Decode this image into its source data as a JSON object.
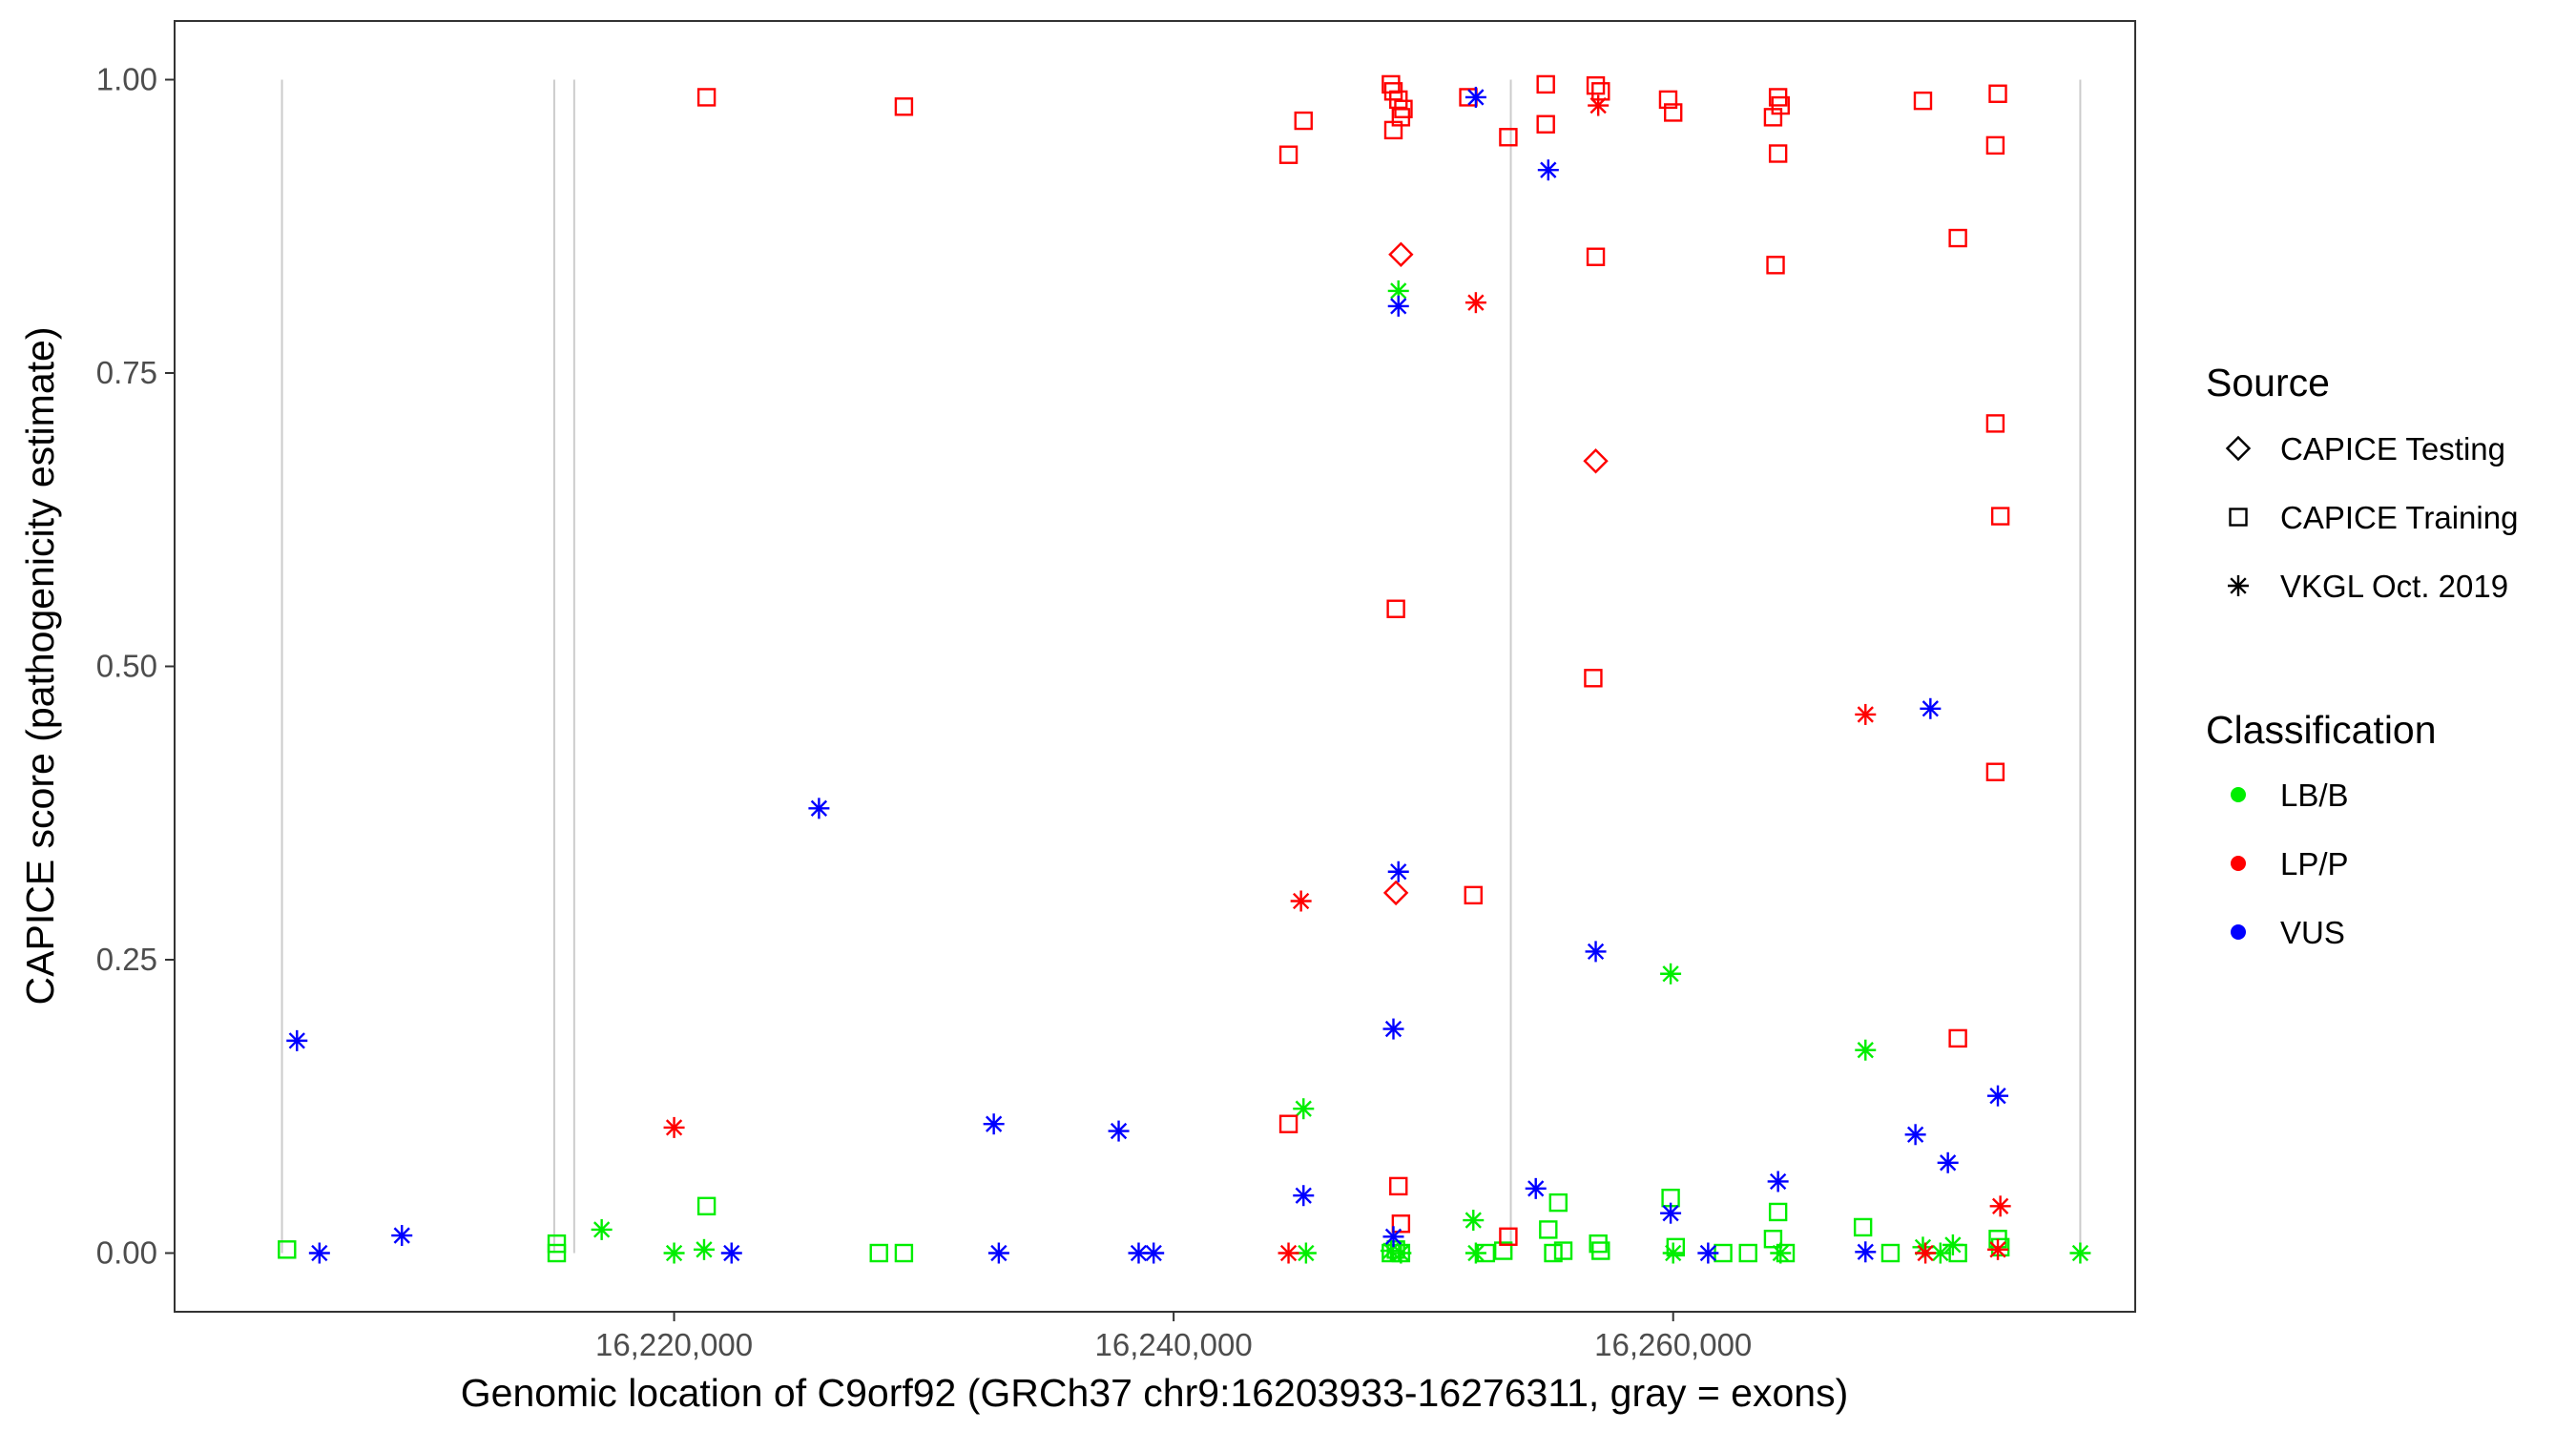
{
  "chart_data": {
    "type": "scatter",
    "xlabel": "Genomic location of C9orf92 (GRCh37 chr9:16203933-16276311, gray = exons)",
    "ylabel": "CAPICE score (pathogenicity estimate)",
    "xlim": [
      16200000,
      16278500
    ],
    "ylim": [
      -0.05,
      1.05
    ],
    "x_ticks": [
      {
        "value": 16220000,
        "label": "16,220,000"
      },
      {
        "value": 16240000,
        "label": "16,240,000"
      },
      {
        "value": 16260000,
        "label": "16,260,000"
      }
    ],
    "y_ticks": [
      {
        "value": 0.0,
        "label": "0.00"
      },
      {
        "value": 0.25,
        "label": "0.25"
      },
      {
        "value": 0.5,
        "label": "0.50"
      },
      {
        "value": 0.75,
        "label": "0.75"
      },
      {
        "value": 1.0,
        "label": "1.00"
      }
    ],
    "exon_positions": [
      16204300,
      16215200,
      16216000,
      16253500,
      16276300
    ],
    "exon_color": "#cccccc",
    "grid": false,
    "legend": {
      "placement": "right",
      "source_title": "Source",
      "source_entries": [
        {
          "label": "CAPICE Testing",
          "shape": "diamond"
        },
        {
          "label": "CAPICE Training",
          "shape": "square"
        },
        {
          "label": "VKGL Oct. 2019",
          "shape": "asterisk"
        }
      ],
      "class_title": "Classification",
      "class_entries": [
        {
          "label": "LB/B",
          "color": "#00ee00"
        },
        {
          "label": "LP/P",
          "color": "#ff0000"
        },
        {
          "label": "VUS",
          "color": "#0000ff"
        }
      ]
    },
    "points": [
      {
        "x": 16204500,
        "y": 0.003,
        "shape": "square",
        "cls": "LB/B"
      },
      {
        "x": 16215300,
        "y": 0.008,
        "shape": "square",
        "cls": "LB/B"
      },
      {
        "x": 16215300,
        "y": 0.0,
        "shape": "square",
        "cls": "LB/B"
      },
      {
        "x": 16221300,
        "y": 0.04,
        "shape": "square",
        "cls": "LB/B"
      },
      {
        "x": 16228200,
        "y": 0.0,
        "shape": "square",
        "cls": "LB/B"
      },
      {
        "x": 16229200,
        "y": 0.0,
        "shape": "square",
        "cls": "LB/B"
      },
      {
        "x": 16248700,
        "y": 0.0,
        "shape": "square",
        "cls": "LB/B"
      },
      {
        "x": 16248900,
        "y": 0.003,
        "shape": "square",
        "cls": "LB/B"
      },
      {
        "x": 16249100,
        "y": 0.0,
        "shape": "square",
        "cls": "LB/B"
      },
      {
        "x": 16252500,
        "y": 0.0,
        "shape": "square",
        "cls": "LB/B"
      },
      {
        "x": 16253200,
        "y": 0.002,
        "shape": "square",
        "cls": "LB/B"
      },
      {
        "x": 16255000,
        "y": 0.02,
        "shape": "square",
        "cls": "LB/B"
      },
      {
        "x": 16255400,
        "y": 0.043,
        "shape": "square",
        "cls": "LB/B"
      },
      {
        "x": 16255200,
        "y": 0.0,
        "shape": "square",
        "cls": "LB/B"
      },
      {
        "x": 16255600,
        "y": 0.002,
        "shape": "square",
        "cls": "LB/B"
      },
      {
        "x": 16257000,
        "y": 0.008,
        "shape": "square",
        "cls": "LB/B"
      },
      {
        "x": 16257100,
        "y": 0.002,
        "shape": "square",
        "cls": "LB/B"
      },
      {
        "x": 16259900,
        "y": 0.047,
        "shape": "square",
        "cls": "LB/B"
      },
      {
        "x": 16260100,
        "y": 0.005,
        "shape": "square",
        "cls": "LB/B"
      },
      {
        "x": 16262000,
        "y": 0.0,
        "shape": "square",
        "cls": "LB/B"
      },
      {
        "x": 16263000,
        "y": 0.0,
        "shape": "square",
        "cls": "LB/B"
      },
      {
        "x": 16264000,
        "y": 0.012,
        "shape": "square",
        "cls": "LB/B"
      },
      {
        "x": 16264200,
        "y": 0.035,
        "shape": "square",
        "cls": "LB/B"
      },
      {
        "x": 16264500,
        "y": 0.0,
        "shape": "square",
        "cls": "LB/B"
      },
      {
        "x": 16267600,
        "y": 0.022,
        "shape": "square",
        "cls": "LB/B"
      },
      {
        "x": 16268700,
        "y": 0.0,
        "shape": "square",
        "cls": "LB/B"
      },
      {
        "x": 16271400,
        "y": 0.0,
        "shape": "square",
        "cls": "LB/B"
      },
      {
        "x": 16273000,
        "y": 0.012,
        "shape": "square",
        "cls": "LB/B"
      },
      {
        "x": 16273100,
        "y": 0.005,
        "shape": "square",
        "cls": "LB/B"
      },
      {
        "x": 16217100,
        "y": 0.02,
        "shape": "asterisk",
        "cls": "LB/B"
      },
      {
        "x": 16220000,
        "y": 0.0,
        "shape": "asterisk",
        "cls": "LB/B"
      },
      {
        "x": 16221200,
        "y": 0.003,
        "shape": "asterisk",
        "cls": "LB/B"
      },
      {
        "x": 16245200,
        "y": 0.123,
        "shape": "asterisk",
        "cls": "LB/B"
      },
      {
        "x": 16245300,
        "y": 0.0,
        "shape": "asterisk",
        "cls": "LB/B"
      },
      {
        "x": 16249000,
        "y": 0.82,
        "shape": "asterisk",
        "cls": "LB/B"
      },
      {
        "x": 16249100,
        "y": 0.0,
        "shape": "asterisk",
        "cls": "LB/B"
      },
      {
        "x": 16248700,
        "y": 0.002,
        "shape": "asterisk",
        "cls": "LB/B"
      },
      {
        "x": 16252000,
        "y": 0.028,
        "shape": "asterisk",
        "cls": "LB/B"
      },
      {
        "x": 16252100,
        "y": 0.0,
        "shape": "asterisk",
        "cls": "LB/B"
      },
      {
        "x": 16259900,
        "y": 0.238,
        "shape": "asterisk",
        "cls": "LB/B"
      },
      {
        "x": 16260000,
        "y": 0.0,
        "shape": "asterisk",
        "cls": "LB/B"
      },
      {
        "x": 16264300,
        "y": 0.0,
        "shape": "asterisk",
        "cls": "LB/B"
      },
      {
        "x": 16267700,
        "y": 0.173,
        "shape": "asterisk",
        "cls": "LB/B"
      },
      {
        "x": 16270000,
        "y": 0.005,
        "shape": "asterisk",
        "cls": "LB/B"
      },
      {
        "x": 16270700,
        "y": 0.0,
        "shape": "asterisk",
        "cls": "LB/B"
      },
      {
        "x": 16271200,
        "y": 0.007,
        "shape": "asterisk",
        "cls": "LB/B"
      },
      {
        "x": 16276300,
        "y": 0.0,
        "shape": "asterisk",
        "cls": "LB/B"
      },
      {
        "x": 16221300,
        "y": 0.985,
        "shape": "square",
        "cls": "LP/P"
      },
      {
        "x": 16229200,
        "y": 0.977,
        "shape": "square",
        "cls": "LP/P"
      },
      {
        "x": 16244600,
        "y": 0.936,
        "shape": "square",
        "cls": "LP/P"
      },
      {
        "x": 16245200,
        "y": 0.965,
        "shape": "square",
        "cls": "LP/P"
      },
      {
        "x": 16244600,
        "y": 0.11,
        "shape": "square",
        "cls": "LP/P"
      },
      {
        "x": 16248700,
        "y": 0.996,
        "shape": "square",
        "cls": "LP/P"
      },
      {
        "x": 16248800,
        "y": 0.99,
        "shape": "square",
        "cls": "LP/P"
      },
      {
        "x": 16249000,
        "y": 0.983,
        "shape": "square",
        "cls": "LP/P"
      },
      {
        "x": 16249200,
        "y": 0.975,
        "shape": "square",
        "cls": "LP/P"
      },
      {
        "x": 16249100,
        "y": 0.968,
        "shape": "square",
        "cls": "LP/P"
      },
      {
        "x": 16248800,
        "y": 0.957,
        "shape": "square",
        "cls": "LP/P"
      },
      {
        "x": 16248900,
        "y": 0.549,
        "shape": "square",
        "cls": "LP/P"
      },
      {
        "x": 16249000,
        "y": 0.057,
        "shape": "square",
        "cls": "LP/P"
      },
      {
        "x": 16249100,
        "y": 0.025,
        "shape": "square",
        "cls": "LP/P"
      },
      {
        "x": 16251800,
        "y": 0.985,
        "shape": "square",
        "cls": "LP/P"
      },
      {
        "x": 16252000,
        "y": 0.305,
        "shape": "square",
        "cls": "LP/P"
      },
      {
        "x": 16253400,
        "y": 0.951,
        "shape": "square",
        "cls": "LP/P"
      },
      {
        "x": 16253400,
        "y": 0.014,
        "shape": "square",
        "cls": "LP/P"
      },
      {
        "x": 16254900,
        "y": 0.996,
        "shape": "square",
        "cls": "LP/P"
      },
      {
        "x": 16254900,
        "y": 0.962,
        "shape": "square",
        "cls": "LP/P"
      },
      {
        "x": 16256900,
        "y": 0.995,
        "shape": "square",
        "cls": "LP/P"
      },
      {
        "x": 16257100,
        "y": 0.99,
        "shape": "square",
        "cls": "LP/P"
      },
      {
        "x": 16256900,
        "y": 0.849,
        "shape": "square",
        "cls": "LP/P"
      },
      {
        "x": 16256800,
        "y": 0.49,
        "shape": "square",
        "cls": "LP/P"
      },
      {
        "x": 16259800,
        "y": 0.983,
        "shape": "square",
        "cls": "LP/P"
      },
      {
        "x": 16260000,
        "y": 0.972,
        "shape": "square",
        "cls": "LP/P"
      },
      {
        "x": 16264200,
        "y": 0.985,
        "shape": "square",
        "cls": "LP/P"
      },
      {
        "x": 16264300,
        "y": 0.978,
        "shape": "square",
        "cls": "LP/P"
      },
      {
        "x": 16264000,
        "y": 0.968,
        "shape": "square",
        "cls": "LP/P"
      },
      {
        "x": 16264200,
        "y": 0.937,
        "shape": "square",
        "cls": "LP/P"
      },
      {
        "x": 16264100,
        "y": 0.842,
        "shape": "square",
        "cls": "LP/P"
      },
      {
        "x": 16270000,
        "y": 0.982,
        "shape": "square",
        "cls": "LP/P"
      },
      {
        "x": 16271400,
        "y": 0.865,
        "shape": "square",
        "cls": "LP/P"
      },
      {
        "x": 16271400,
        "y": 0.183,
        "shape": "square",
        "cls": "LP/P"
      },
      {
        "x": 16273000,
        "y": 0.988,
        "shape": "square",
        "cls": "LP/P"
      },
      {
        "x": 16272900,
        "y": 0.944,
        "shape": "square",
        "cls": "LP/P"
      },
      {
        "x": 16272900,
        "y": 0.707,
        "shape": "square",
        "cls": "LP/P"
      },
      {
        "x": 16273100,
        "y": 0.628,
        "shape": "square",
        "cls": "LP/P"
      },
      {
        "x": 16272900,
        "y": 0.41,
        "shape": "square",
        "cls": "LP/P"
      },
      {
        "x": 16220000,
        "y": 0.107,
        "shape": "asterisk",
        "cls": "LP/P"
      },
      {
        "x": 16244600,
        "y": 0.0,
        "shape": "asterisk",
        "cls": "LP/P"
      },
      {
        "x": 16245100,
        "y": 0.3,
        "shape": "asterisk",
        "cls": "LP/P"
      },
      {
        "x": 16252100,
        "y": 0.81,
        "shape": "asterisk",
        "cls": "LP/P"
      },
      {
        "x": 16257000,
        "y": 0.978,
        "shape": "asterisk",
        "cls": "LP/P"
      },
      {
        "x": 16267700,
        "y": 0.459,
        "shape": "asterisk",
        "cls": "LP/P"
      },
      {
        "x": 16270100,
        "y": 0.0,
        "shape": "asterisk",
        "cls": "LP/P"
      },
      {
        "x": 16273100,
        "y": 0.04,
        "shape": "asterisk",
        "cls": "LP/P"
      },
      {
        "x": 16273000,
        "y": 0.003,
        "shape": "asterisk",
        "cls": "LP/P"
      },
      {
        "x": 16249100,
        "y": 0.851,
        "shape": "diamond",
        "cls": "LP/P"
      },
      {
        "x": 16256900,
        "y": 0.675,
        "shape": "diamond",
        "cls": "LP/P"
      },
      {
        "x": 16248900,
        "y": 0.307,
        "shape": "diamond",
        "cls": "LP/P"
      },
      {
        "x": 16204900,
        "y": 0.181,
        "shape": "asterisk",
        "cls": "VUS"
      },
      {
        "x": 16205800,
        "y": 0.0,
        "shape": "asterisk",
        "cls": "VUS"
      },
      {
        "x": 16209100,
        "y": 0.015,
        "shape": "asterisk",
        "cls": "VUS"
      },
      {
        "x": 16222300,
        "y": 0.0,
        "shape": "asterisk",
        "cls": "VUS"
      },
      {
        "x": 16225800,
        "y": 0.379,
        "shape": "asterisk",
        "cls": "VUS"
      },
      {
        "x": 16232800,
        "y": 0.11,
        "shape": "asterisk",
        "cls": "VUS"
      },
      {
        "x": 16233000,
        "y": 0.0,
        "shape": "asterisk",
        "cls": "VUS"
      },
      {
        "x": 16237800,
        "y": 0.104,
        "shape": "asterisk",
        "cls": "VUS"
      },
      {
        "x": 16238600,
        "y": 0.0,
        "shape": "asterisk",
        "cls": "VUS"
      },
      {
        "x": 16239200,
        "y": 0.0,
        "shape": "asterisk",
        "cls": "VUS"
      },
      {
        "x": 16245200,
        "y": 0.049,
        "shape": "asterisk",
        "cls": "VUS"
      },
      {
        "x": 16248800,
        "y": 0.191,
        "shape": "asterisk",
        "cls": "VUS"
      },
      {
        "x": 16249000,
        "y": 0.325,
        "shape": "asterisk",
        "cls": "VUS"
      },
      {
        "x": 16249000,
        "y": 0.807,
        "shape": "asterisk",
        "cls": "VUS"
      },
      {
        "x": 16248800,
        "y": 0.014,
        "shape": "asterisk",
        "cls": "VUS"
      },
      {
        "x": 16252100,
        "y": 0.985,
        "shape": "asterisk",
        "cls": "VUS"
      },
      {
        "x": 16255000,
        "y": 0.923,
        "shape": "asterisk",
        "cls": "VUS"
      },
      {
        "x": 16254500,
        "y": 0.055,
        "shape": "asterisk",
        "cls": "VUS"
      },
      {
        "x": 16256900,
        "y": 0.257,
        "shape": "asterisk",
        "cls": "VUS"
      },
      {
        "x": 16259900,
        "y": 0.034,
        "shape": "asterisk",
        "cls": "VUS"
      },
      {
        "x": 16261400,
        "y": 0.0,
        "shape": "asterisk",
        "cls": "VUS"
      },
      {
        "x": 16264200,
        "y": 0.061,
        "shape": "asterisk",
        "cls": "VUS"
      },
      {
        "x": 16267700,
        "y": 0.001,
        "shape": "asterisk",
        "cls": "VUS"
      },
      {
        "x": 16269700,
        "y": 0.101,
        "shape": "asterisk",
        "cls": "VUS"
      },
      {
        "x": 16270300,
        "y": 0.464,
        "shape": "asterisk",
        "cls": "VUS"
      },
      {
        "x": 16271000,
        "y": 0.077,
        "shape": "asterisk",
        "cls": "VUS"
      },
      {
        "x": 16273000,
        "y": 0.134,
        "shape": "asterisk",
        "cls": "VUS"
      }
    ]
  }
}
